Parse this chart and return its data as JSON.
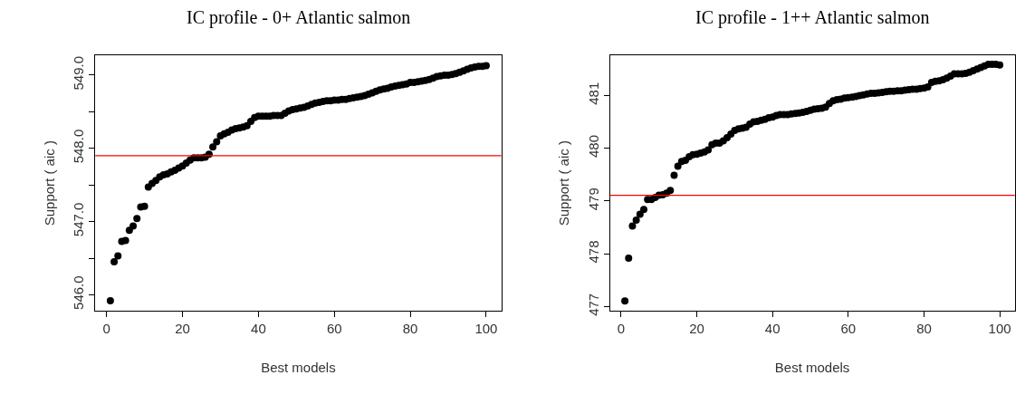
{
  "chart_data": [
    {
      "type": "scatter",
      "title": "IC profile - 0+ Atlantic salmon",
      "xlabel": "Best models",
      "ylabel": "Support ( aic )",
      "marker": "circle",
      "color": "#000000",
      "x": [
        1,
        2,
        3,
        4,
        5,
        6,
        7,
        8,
        9,
        10,
        11,
        12,
        13,
        14,
        15,
        16,
        17,
        18,
        19,
        20,
        21,
        22,
        23,
        24,
        25,
        26,
        27,
        28,
        29,
        30,
        31,
        32,
        33,
        34,
        35,
        36,
        37,
        38,
        39,
        40,
        41,
        42,
        43,
        44,
        45,
        46,
        47,
        48,
        49,
        50,
        51,
        52,
        53,
        54,
        55,
        56,
        57,
        58,
        59,
        60,
        61,
        62,
        63,
        64,
        65,
        66,
        67,
        68,
        69,
        70,
        71,
        72,
        73,
        74,
        75,
        76,
        77,
        78,
        79,
        80,
        81,
        82,
        83,
        84,
        85,
        86,
        87,
        88,
        89,
        90,
        91,
        92,
        93,
        94,
        95,
        96,
        97,
        98,
        99,
        100
      ],
      "values": [
        545.92,
        546.45,
        546.53,
        546.73,
        546.74,
        546.88,
        546.94,
        547.04,
        547.2,
        547.21,
        547.47,
        547.52,
        547.56,
        547.61,
        547.64,
        547.65,
        547.68,
        547.7,
        547.73,
        547.76,
        547.8,
        547.84,
        547.87,
        547.87,
        547.87,
        547.88,
        547.92,
        548.02,
        548.09,
        548.17,
        548.2,
        548.22,
        548.25,
        548.27,
        548.28,
        548.29,
        548.31,
        548.37,
        548.42,
        548.44,
        548.44,
        548.44,
        548.44,
        548.45,
        548.45,
        548.45,
        548.48,
        548.51,
        548.53,
        548.54,
        548.55,
        548.56,
        548.58,
        548.6,
        548.62,
        548.63,
        548.64,
        548.65,
        548.65,
        548.66,
        548.66,
        548.67,
        548.67,
        548.68,
        548.69,
        548.7,
        548.71,
        548.72,
        548.74,
        548.76,
        548.78,
        548.8,
        548.81,
        548.82,
        548.84,
        548.85,
        548.86,
        548.87,
        548.88,
        548.9,
        548.9,
        548.91,
        548.92,
        548.93,
        548.94,
        548.96,
        548.98,
        548.99,
        549.0,
        549.0,
        549.01,
        549.02,
        549.04,
        549.06,
        549.08,
        549.1,
        549.11,
        549.12,
        549.12,
        549.13
      ],
      "xlim": [
        -2.96,
        103.96
      ],
      "ylim": [
        545.78,
        549.27
      ],
      "xticks": [
        0,
        20,
        40,
        60,
        80,
        100
      ],
      "yticks": [
        {
          "value": 546.0,
          "label": "546.0"
        },
        {
          "value": 546.5,
          "label": null
        },
        {
          "value": 547.0,
          "label": "547.0"
        },
        {
          "value": 547.5,
          "label": null
        },
        {
          "value": 548.0,
          "label": "548.0"
        },
        {
          "value": 548.5,
          "label": null
        },
        {
          "value": 549.0,
          "label": "549.0"
        }
      ],
      "ref_lines": [
        {
          "axis": "y",
          "value": 547.9,
          "color": "#ff0000"
        }
      ]
    },
    {
      "type": "scatter",
      "title": "IC profile - 1++ Atlantic salmon",
      "xlabel": "Best models",
      "ylabel": "Support ( aic )",
      "marker": "circle",
      "color": "#000000",
      "x": [
        1,
        2,
        3,
        4,
        5,
        6,
        7,
        8,
        9,
        10,
        11,
        12,
        13,
        14,
        15,
        16,
        17,
        18,
        19,
        20,
        21,
        22,
        23,
        24,
        25,
        26,
        27,
        28,
        29,
        30,
        31,
        32,
        33,
        34,
        35,
        36,
        37,
        38,
        39,
        40,
        41,
        42,
        43,
        44,
        45,
        46,
        47,
        48,
        49,
        50,
        51,
        52,
        53,
        54,
        55,
        56,
        57,
        58,
        59,
        60,
        61,
        62,
        63,
        64,
        65,
        66,
        67,
        68,
        69,
        70,
        71,
        72,
        73,
        74,
        75,
        76,
        77,
        78,
        79,
        80,
        81,
        82,
        83,
        84,
        85,
        86,
        87,
        88,
        89,
        90,
        91,
        92,
        93,
        94,
        95,
        96,
        97,
        98,
        99,
        100
      ],
      "values": [
        477.11,
        477.92,
        478.53,
        478.64,
        478.75,
        478.84,
        479.03,
        479.03,
        479.07,
        479.11,
        479.12,
        479.15,
        479.2,
        479.49,
        479.66,
        479.75,
        479.77,
        479.84,
        479.88,
        479.89,
        479.91,
        479.93,
        479.97,
        480.07,
        480.1,
        480.1,
        480.14,
        480.2,
        480.27,
        480.34,
        480.37,
        480.38,
        480.4,
        480.46,
        480.5,
        480.51,
        480.53,
        480.55,
        480.58,
        480.59,
        480.62,
        480.64,
        480.64,
        480.64,
        480.65,
        480.66,
        480.67,
        480.68,
        480.7,
        480.72,
        480.74,
        480.75,
        480.76,
        480.78,
        480.85,
        480.9,
        480.92,
        480.93,
        480.95,
        480.96,
        480.97,
        480.98,
        481.0,
        481.01,
        481.03,
        481.04,
        481.04,
        481.05,
        481.06,
        481.07,
        481.08,
        481.08,
        481.09,
        481.09,
        481.1,
        481.11,
        481.12,
        481.12,
        481.13,
        481.14,
        481.16,
        481.25,
        481.27,
        481.28,
        481.3,
        481.33,
        481.37,
        481.41,
        481.41,
        481.41,
        481.42,
        481.44,
        481.47,
        481.5,
        481.53,
        481.56,
        481.59,
        481.59,
        481.59,
        481.58
      ],
      "xlim": [
        -2.96,
        103.96
      ],
      "ylim": [
        476.92,
        481.76
      ],
      "xticks": [
        0,
        20,
        40,
        60,
        80,
        100
      ],
      "yticks": [
        477,
        478,
        479,
        480,
        481
      ],
      "ref_lines": [
        {
          "axis": "y",
          "value": 479.11,
          "color": "#ff0000"
        }
      ]
    }
  ]
}
